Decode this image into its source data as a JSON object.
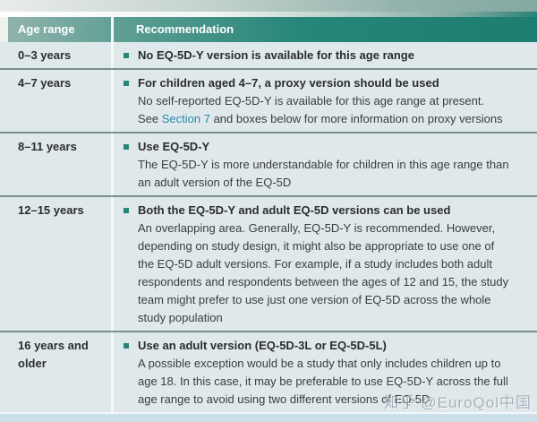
{
  "header": {
    "age": "Age range",
    "recommendation": "Recommendation"
  },
  "rows": [
    {
      "age": "0–3 years",
      "title": "No EQ-5D-Y version is available for this age range"
    },
    {
      "age": "4–7 years",
      "title": "For children aged 4–7, a proxy version should be used",
      "line1": "No self-reported EQ-5D-Y is available for this age range at present.",
      "see_prefix": "See ",
      "link": "Section 7",
      "see_suffix": " and boxes below for more information on proxy versions"
    },
    {
      "age": "8–11 years",
      "title": "Use EQ-5D-Y",
      "body": "The EQ-5D-Y is more understandable for children in this age range than an adult version of the EQ-5D"
    },
    {
      "age": "12–15 years",
      "title": "Both the EQ-5D-Y and adult EQ-5D versions can be used",
      "body": "An overlapping area. Generally, EQ-5D-Y is recommended. However, depending on study design, it might also be appropriate to use one of the EQ-5D adult versions. For example, if a study includes both adult respondents and respondents between the ages of 12 and 15, the study team might prefer to use just one version of EQ-5D across the whole study population"
    },
    {
      "age": "16 years and older",
      "title": "Use an adult version (EQ-5D-3L or EQ-5D-5L)",
      "body": "A possible exception would be a study that only includes children up to age 18. In this case, it may be preferable to use EQ-5D-Y across the full age range to avoid using two different versions of EQ-5D"
    }
  ],
  "watermark": "知乎 @EuroQol中国",
  "colors": {
    "header_teal_dark": "#1e7d71",
    "header_teal_light": "#90b3ad",
    "bullet_teal": "#2b8478",
    "link_blue": "#2e86a5",
    "row_background": "#dfe9ec",
    "row_divider": "#7c8e90",
    "bottom_strip": "#cddfe8"
  }
}
